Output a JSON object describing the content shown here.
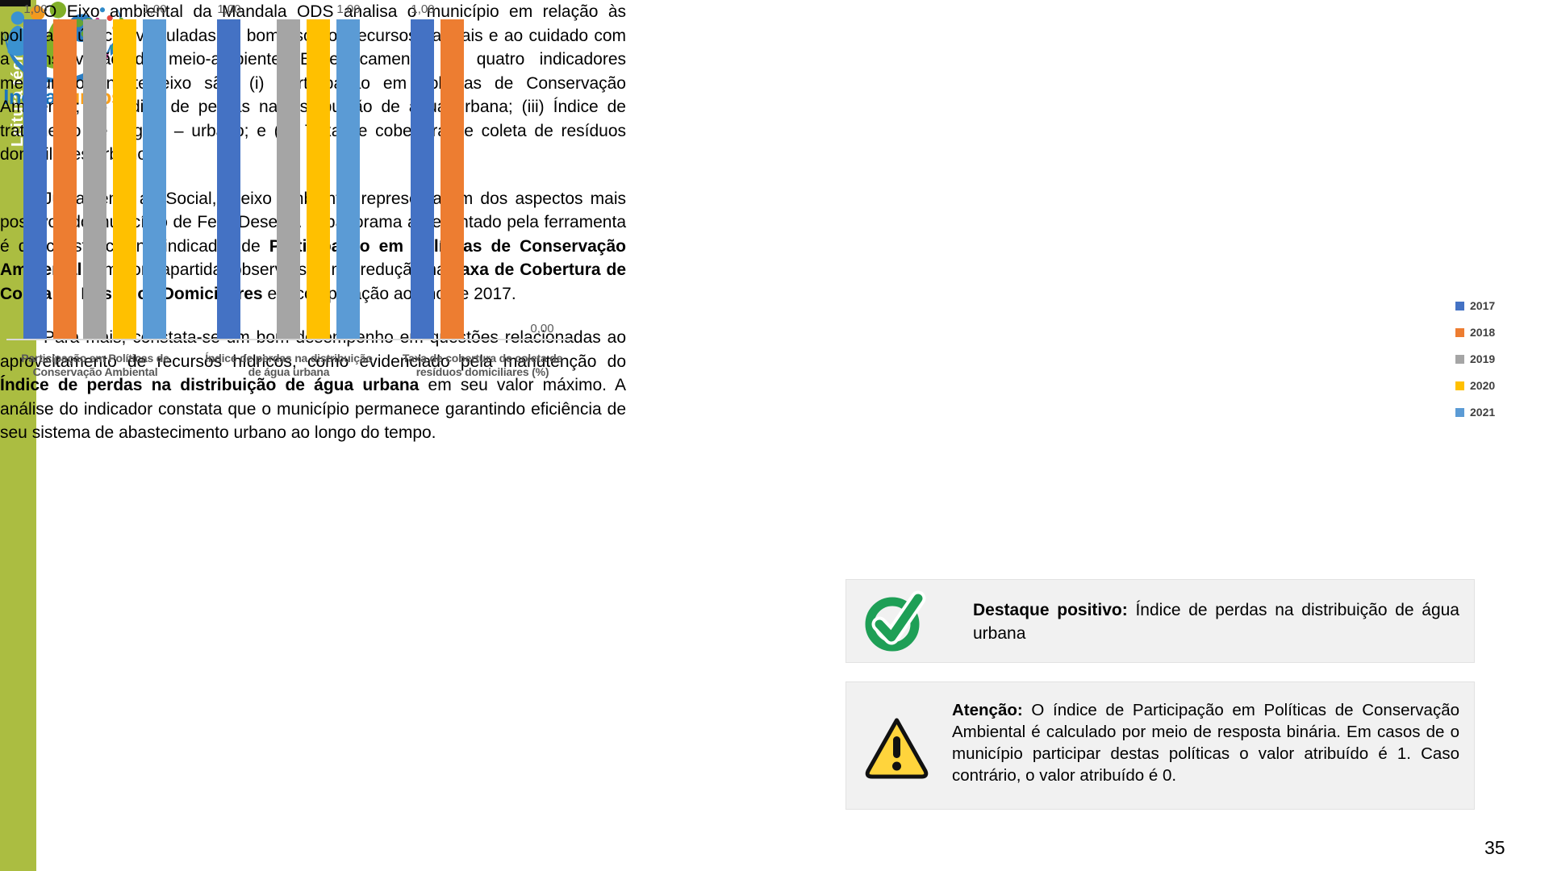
{
  "page_number": "35",
  "sidebar": {
    "label": "Leitura técnica",
    "band_color": "#ABBD41"
  },
  "logo": {
    "word1": "Inova",
    "word2": "Juntos",
    "icon": "inovajuntos-people-globe-swoosh"
  },
  "article": {
    "paragraphs": [
      [
        [
          "O Eixo ambiental da Mandala ODS analisa o município em relação às políticas públicas vinculadas ao bom uso dos recursos naturais e ao cuidado com a conservação do meio-ambiente. Especificamente, os quatro indicadores mensurados neste eixo são: (i) Participação em políticas de Conservação Ambiental; (ii) Índice de perdas na distribuição de água urbana; (iii) Índice de tratamento de esgoto – urbano; e (iv) Taxa de cobertura de coleta de resíduos domiciliares urbanos.",
          false
        ]
      ],
      [
        [
          "Juntamente ao Social, o eixo Ambiental representa um dos aspectos mais positivos do município de Feliz Deserto. O panorama apresentado pela ferramenta é de constância no indicador de ",
          false
        ],
        [
          "Participação em Políticas de Conservação Ambiental",
          true
        ],
        [
          ". Em contrapartida, observa-se uma redução na ",
          false
        ],
        [
          "Taxa de Cobertura de Coleta de Resíduos Domiciliares",
          true
        ],
        [
          " em comparação ao ano de 2017.",
          false
        ]
      ],
      [
        [
          "Para mais, constata-se um bom desempenho em questões relacionadas ao aproveitamento de recursos hídricos, como evidenciado pela manutenção do ",
          false
        ],
        [
          "Índice de perdas na distribuição de água urbana",
          true
        ],
        [
          " em seu valor máximo. A análise do indicador constata que o município permanece garantindo eficiência de seu sistema de abastecimento urbano ao longo do tempo.",
          false
        ]
      ]
    ]
  },
  "chart_data": {
    "type": "bar",
    "title": "",
    "xlabel": "",
    "ylabel": "",
    "ylim": [
      0,
      1
    ],
    "grid": false,
    "legend_position": "right",
    "value_label_format": "0,00",
    "categories": [
      {
        "label": "Participação em Políticas de Conservação Ambiental",
        "label_lines": [
          "Participação em Políticas de",
          "Conservação Ambiental"
        ]
      },
      {
        "label": "Índice de perdas na distribuição de água urbana",
        "label_lines": [
          "Índice de perdas na distribuição",
          "de água urbana"
        ]
      },
      {
        "label": "Taxa de cobertura de coleta de resíduos domiciliares (%)",
        "label_lines": [
          "Taxa de cobertura de coleta de",
          "resíduos domiciliares (%)"
        ]
      }
    ],
    "series": [
      {
        "name": "2017",
        "color": "#4472C4",
        "values": [
          1.0,
          1.0,
          1.0
        ],
        "data_labels": true
      },
      {
        "name": "2018",
        "color": "#ED7D31",
        "values": [
          1.0,
          null,
          1.0
        ],
        "data_labels": false
      },
      {
        "name": "2019",
        "color": "#A5A5A5",
        "values": [
          1.0,
          1.0,
          0.0
        ],
        "data_labels": false
      },
      {
        "name": "2020",
        "color": "#FFC000",
        "values": [
          1.0,
          1.0,
          0.0
        ],
        "data_labels": false
      },
      {
        "name": "2021",
        "color": "#5B9BD5",
        "values": [
          1.0,
          1.0,
          0.0
        ],
        "data_labels": true
      }
    ]
  },
  "callouts": [
    {
      "icon": "check-circle-icon",
      "lead": "Destaque positivo:",
      "text": " Índice de perdas na distribuição de água urbana"
    },
    {
      "icon": "warning-triangle-icon",
      "lead": "Atenção:",
      "text": " O índice de Participação em Políticas de Conservação Ambiental é calculado por meio de resposta binária. Em casos de o município participar destas políticas o valor atribuído é 1. Caso contrário, o valor atribuído é 0."
    }
  ],
  "colors": {
    "side_band_green": "#ABBD41",
    "callout_bg": "#F1F1F1",
    "callout_border": "#E2E2E2",
    "axis_line": "#D9D9D9",
    "chart_label_gray": "#595959",
    "legend_text": "#404040",
    "check_green": "#1E9F56",
    "warning_yellow": "#FFD43C",
    "logo_blue": "#1B75BC",
    "logo_orange": "#F9A01B"
  }
}
